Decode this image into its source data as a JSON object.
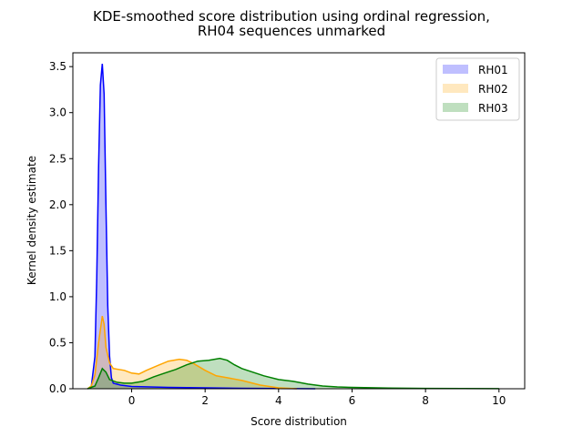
{
  "chart_data": {
    "type": "area",
    "title": "KDE-smoothed score distribution using ordinal regression,",
    "subtitle": "RH04 sequences unmarked",
    "xlabel": "Score distribution",
    "ylabel": "Kernel density estimate",
    "xlim": [
      -1.6,
      10.7
    ],
    "ylim": [
      0,
      3.65
    ],
    "xticks": [
      0,
      2,
      4,
      6,
      8,
      10
    ],
    "yticks": [
      0.0,
      0.5,
      1.0,
      1.5,
      2.0,
      2.5,
      3.0,
      3.5
    ],
    "grid": false,
    "legend_position": "top-right",
    "series": [
      {
        "name": "RH01",
        "color": "#0000ff",
        "fill": "rgba(0,0,255,0.25)",
        "points": [
          [
            -1.2,
            0
          ],
          [
            -1.1,
            0.02
          ],
          [
            -1.0,
            0.35
          ],
          [
            -0.95,
            1.2
          ],
          [
            -0.9,
            2.4
          ],
          [
            -0.85,
            3.3
          ],
          [
            -0.8,
            3.53
          ],
          [
            -0.75,
            3.2
          ],
          [
            -0.7,
            2.0
          ],
          [
            -0.65,
            0.9
          ],
          [
            -0.6,
            0.35
          ],
          [
            -0.55,
            0.12
          ],
          [
            -0.5,
            0.06
          ],
          [
            -0.3,
            0.04
          ],
          [
            0,
            0.025
          ],
          [
            0.5,
            0.02
          ],
          [
            1.0,
            0.015
          ],
          [
            2,
            0.01
          ],
          [
            3,
            0.005
          ],
          [
            4,
            0.002
          ],
          [
            5,
            0
          ]
        ]
      },
      {
        "name": "RH02",
        "color": "#ffa500",
        "fill": "rgba(255,165,0,0.25)",
        "points": [
          [
            -1.2,
            0
          ],
          [
            -1.1,
            0.03
          ],
          [
            -1.0,
            0.15
          ],
          [
            -0.9,
            0.5
          ],
          [
            -0.8,
            0.79
          ],
          [
            -0.75,
            0.7
          ],
          [
            -0.7,
            0.45
          ],
          [
            -0.6,
            0.28
          ],
          [
            -0.5,
            0.22
          ],
          [
            -0.2,
            0.2
          ],
          [
            0,
            0.17
          ],
          [
            0.2,
            0.16
          ],
          [
            0.4,
            0.2
          ],
          [
            0.7,
            0.25
          ],
          [
            1.0,
            0.3
          ],
          [
            1.3,
            0.32
          ],
          [
            1.5,
            0.31
          ],
          [
            1.7,
            0.27
          ],
          [
            2.0,
            0.2
          ],
          [
            2.3,
            0.14
          ],
          [
            2.6,
            0.12
          ],
          [
            3.0,
            0.09
          ],
          [
            3.5,
            0.04
          ],
          [
            4.0,
            0.01
          ],
          [
            4.5,
            0
          ]
        ]
      },
      {
        "name": "RH03",
        "color": "#008000",
        "fill": "rgba(0,128,0,0.25)",
        "points": [
          [
            -1.2,
            0
          ],
          [
            -1.0,
            0.03
          ],
          [
            -0.9,
            0.12
          ],
          [
            -0.8,
            0.22
          ],
          [
            -0.7,
            0.18
          ],
          [
            -0.6,
            0.1
          ],
          [
            -0.4,
            0.07
          ],
          [
            -0.2,
            0.06
          ],
          [
            0,
            0.06
          ],
          [
            0.3,
            0.08
          ],
          [
            0.6,
            0.13
          ],
          [
            0.9,
            0.17
          ],
          [
            1.2,
            0.21
          ],
          [
            1.5,
            0.26
          ],
          [
            1.8,
            0.3
          ],
          [
            2.1,
            0.31
          ],
          [
            2.4,
            0.33
          ],
          [
            2.6,
            0.31
          ],
          [
            2.8,
            0.26
          ],
          [
            3.0,
            0.22
          ],
          [
            3.3,
            0.18
          ],
          [
            3.6,
            0.14
          ],
          [
            4.0,
            0.1
          ],
          [
            4.4,
            0.08
          ],
          [
            4.8,
            0.05
          ],
          [
            5.2,
            0.03
          ],
          [
            5.6,
            0.02
          ],
          [
            6,
            0.015
          ],
          [
            7,
            0.008
          ],
          [
            8,
            0.004
          ],
          [
            9,
            0.002
          ],
          [
            10,
            0.001
          ]
        ]
      }
    ]
  }
}
